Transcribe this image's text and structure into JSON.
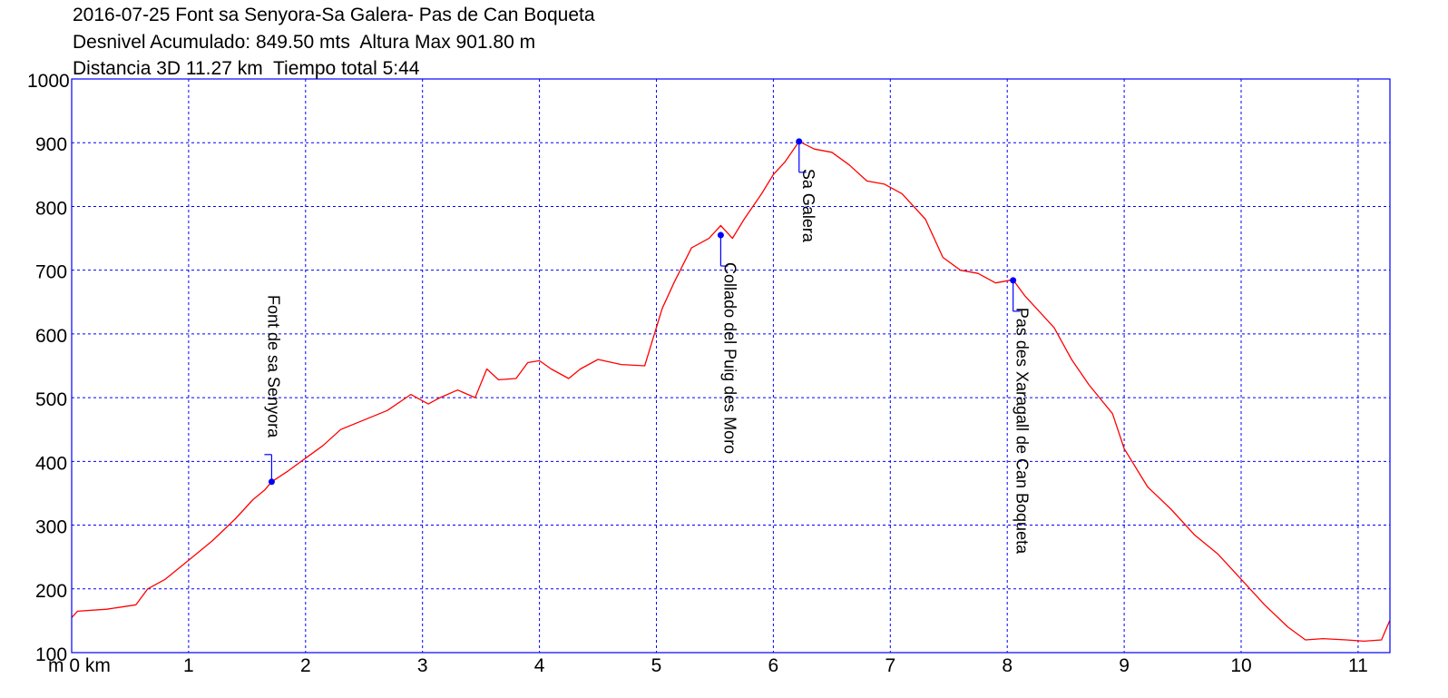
{
  "header": {
    "line1": "2016-07-25 Font sa Senyora-Sa Galera- Pas de Can Boqueta",
    "line2": "Desnivel Acumulado: 849.50 mts  Altura Max 901.80 m",
    "line3": "Distancia 3D 11.27 km  Tiempo total 5:44"
  },
  "colors": {
    "frame": "#0000ff",
    "grid": "#0000ff",
    "profile": "#ff0000",
    "marker": "#0000ff"
  },
  "chart_data": {
    "type": "line",
    "title": "2016-07-25 Font sa Senyora-Sa Galera- Pas de Can Boqueta",
    "xlabel": "",
    "ylabel": "",
    "x_unit_label": "m 0 km",
    "xlim": [
      0,
      11.27
    ],
    "ylim": [
      100,
      1000
    ],
    "grid": true,
    "x_ticks": [
      0,
      1,
      2,
      3,
      4,
      5,
      6,
      7,
      8,
      9,
      10,
      11
    ],
    "x_tick_labels": [
      "m 0 km",
      "1",
      "2",
      "3",
      "4",
      "5",
      "6",
      "7",
      "8",
      "9",
      "10",
      "11"
    ],
    "y_ticks": [
      100,
      200,
      300,
      400,
      500,
      600,
      700,
      800,
      900,
      1000
    ],
    "y_tick_labels": [
      "100",
      "200",
      "300",
      "400",
      "500",
      "600",
      "700",
      "800",
      "900",
      "1000"
    ],
    "series": [
      {
        "x": [
          0,
          0.05,
          0.3,
          0.55,
          0.65,
          0.8,
          1.0,
          1.2,
          1.4,
          1.55,
          1.65,
          1.71,
          1.85,
          2.0,
          2.15,
          2.3,
          2.5,
          2.7,
          2.9,
          3.05,
          3.15,
          3.3,
          3.45,
          3.55,
          3.65,
          3.8,
          3.9,
          4.0,
          4.1,
          4.25,
          4.35,
          4.5,
          4.7,
          4.9,
          5.05,
          5.15,
          5.3,
          5.45,
          5.55,
          5.65,
          5.75,
          5.9,
          6.0,
          6.1,
          6.22,
          6.35,
          6.5,
          6.65,
          6.8,
          6.95,
          7.1,
          7.3,
          7.45,
          7.6,
          7.75,
          7.9,
          8.05,
          8.15,
          8.25,
          8.4,
          8.55,
          8.7,
          8.9,
          9.0,
          9.2,
          9.4,
          9.6,
          9.8,
          10.0,
          10.2,
          10.4,
          10.55,
          10.7,
          10.9,
          11.05,
          11.2,
          11.27
        ],
        "y": [
          155,
          165,
          168,
          175,
          200,
          215,
          245,
          275,
          310,
          340,
          355,
          368,
          385,
          405,
          425,
          450,
          465,
          480,
          505,
          490,
          500,
          512,
          500,
          545,
          528,
          530,
          555,
          558,
          545,
          530,
          545,
          560,
          552,
          550,
          640,
          680,
          735,
          750,
          770,
          750,
          780,
          820,
          850,
          870,
          902,
          890,
          885,
          865,
          840,
          835,
          820,
          780,
          720,
          700,
          695,
          680,
          685,
          660,
          640,
          610,
          560,
          520,
          475,
          420,
          360,
          325,
          285,
          255,
          215,
          175,
          140,
          120,
          122,
          120,
          118,
          120,
          150
        ]
      }
    ],
    "annotations": [
      {
        "label": "Font de sa Senyora",
        "x": 1.71,
        "y": 368
      },
      {
        "label": "Collado del Puig des Moro",
        "x": 5.55,
        "y": 755
      },
      {
        "label": "Sa Galera",
        "x": 6.22,
        "y": 902
      },
      {
        "label": "Pas des Xaragall de Can Boqueta",
        "x": 8.05,
        "y": 684
      }
    ]
  }
}
